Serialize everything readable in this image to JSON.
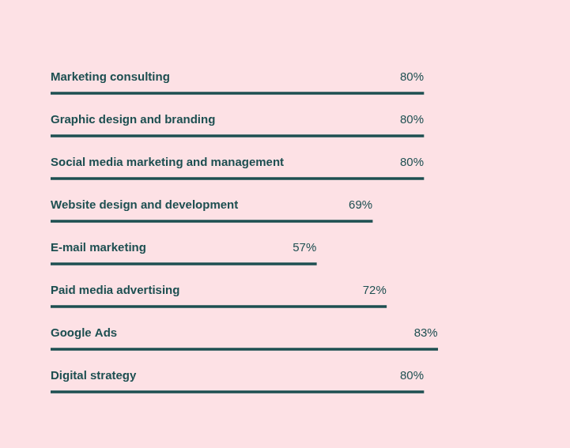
{
  "chart_data": {
    "type": "bar",
    "orientation": "horizontal",
    "categories": [
      "Marketing consulting",
      "Graphic design and branding",
      "Social media marketing and management",
      "Website design and development",
      "E-mail marketing",
      "Paid media advertising",
      "Google Ads",
      "Digital strategy"
    ],
    "values": [
      80,
      80,
      80,
      69,
      57,
      72,
      83,
      80
    ],
    "value_labels": [
      "80%",
      "80%",
      "80%",
      "69%",
      "57%",
      "72%",
      "83%",
      "80%"
    ],
    "color": "#1d4f51",
    "xlim": [
      0,
      100
    ],
    "grid": false,
    "tick_labels": false,
    "data_labels": true
  }
}
